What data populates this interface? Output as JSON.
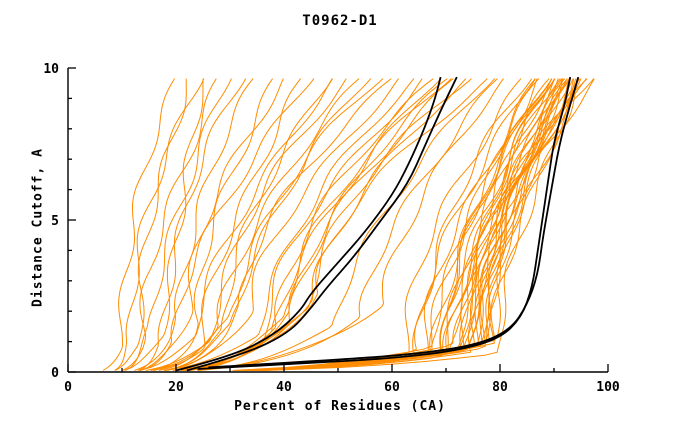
{
  "title": "T0962-D1",
  "chart_data": {
    "type": "line",
    "title": "T0962-D1",
    "xlabel": "Percent of Residues (CA)",
    "ylabel": "Distance Cutoff, A",
    "xlim": [
      0,
      100
    ],
    "ylim": [
      0,
      10
    ],
    "x_major_ticks": [
      0,
      20,
      40,
      60,
      80,
      100
    ],
    "x_minor_step": 10,
    "y_major_ticks": [
      0,
      5,
      10
    ],
    "y_minor_step": 1,
    "grid": false,
    "legend": "none",
    "colors": {
      "model_lines": "#ff8c00",
      "highlight_lines": "#000000",
      "background": "#ffffff"
    },
    "orange_curve_params": {
      "param_format": "[x_start, x_knee, knee_y, x_top]",
      "knee_exponent": 0.38,
      "tail_exponent": 1.6,
      "y_top": 9.7,
      "curves": [
        [
          5,
          9,
          0.8,
          20
        ],
        [
          6,
          11,
          1.0,
          24
        ],
        [
          7,
          13,
          0.9,
          22
        ],
        [
          8,
          14,
          1.2,
          28
        ],
        [
          8,
          16,
          1.5,
          30
        ],
        [
          9,
          18,
          1.2,
          26
        ],
        [
          10,
          20,
          1.8,
          35
        ],
        [
          10,
          17,
          0.9,
          32
        ],
        [
          11,
          22,
          2.0,
          40
        ],
        [
          12,
          24,
          1.6,
          38
        ],
        [
          9,
          20,
          1.0,
          45
        ],
        [
          10,
          24,
          1.2,
          50
        ],
        [
          11,
          28,
          1.5,
          55
        ],
        [
          12,
          30,
          1.8,
          58
        ],
        [
          10,
          26,
          1.0,
          52
        ],
        [
          13,
          32,
          2.2,
          60
        ],
        [
          12,
          29,
          1.4,
          48
        ],
        [
          14,
          34,
          2.0,
          62
        ],
        [
          11,
          25,
          0.8,
          44
        ],
        [
          13,
          31,
          1.6,
          56
        ],
        [
          12,
          35,
          1.2,
          65
        ],
        [
          13,
          38,
          1.5,
          68
        ],
        [
          14,
          40,
          1.8,
          70
        ],
        [
          12,
          36,
          1.0,
          66
        ],
        [
          15,
          42,
          2.0,
          72
        ],
        [
          13,
          39,
          1.3,
          69
        ],
        [
          16,
          45,
          2.4,
          75
        ],
        [
          14,
          41,
          1.6,
          71
        ],
        [
          15,
          44,
          2.1,
          74
        ],
        [
          16,
          46,
          2.6,
          78
        ],
        [
          10,
          62,
          0.6,
          84
        ],
        [
          11,
          65,
          0.7,
          86
        ],
        [
          12,
          68,
          0.8,
          88
        ],
        [
          10,
          70,
          0.6,
          90
        ],
        [
          13,
          72,
          0.9,
          91
        ],
        [
          11,
          74,
          0.7,
          92
        ],
        [
          12,
          76,
          0.8,
          93
        ],
        [
          14,
          78,
          1.0,
          94
        ],
        [
          10,
          80,
          0.6,
          95
        ],
        [
          13,
          75,
          0.9,
          92
        ],
        [
          11,
          71,
          0.7,
          90
        ],
        [
          12,
          73,
          0.8,
          91
        ],
        [
          14,
          77,
          1.0,
          93
        ],
        [
          10,
          69,
          0.5,
          89
        ],
        [
          15,
          79,
          1.1,
          94
        ],
        [
          11,
          66,
          0.6,
          87
        ],
        [
          12,
          70,
          0.7,
          90
        ],
        [
          13,
          74,
          0.8,
          92
        ],
        [
          14,
          76,
          0.9,
          93
        ],
        [
          10,
          64,
          0.5,
          85
        ],
        [
          12,
          72,
          0.75,
          95
        ],
        [
          13,
          78,
          0.95,
          96
        ],
        [
          11,
          75,
          0.65,
          93
        ],
        [
          12,
          77,
          0.85,
          94
        ],
        [
          10,
          67,
          0.55,
          88
        ],
        [
          11,
          70,
          0.6,
          97
        ],
        [
          12,
          74,
          0.8,
          98
        ],
        [
          13,
          72,
          0.7,
          96
        ],
        [
          11,
          73,
          0.7,
          91.5
        ],
        [
          12,
          76,
          0.85,
          92.5
        ],
        [
          13,
          79,
          1.05,
          95.5
        ],
        [
          10,
          68,
          0.6,
          89.5
        ],
        [
          12,
          71,
          0.75,
          90.5
        ],
        [
          14,
          75,
          0.95,
          92
        ],
        [
          11,
          69,
          0.65,
          88.5
        ],
        [
          13,
          77,
          0.9,
          94.5
        ],
        [
          13,
          55,
          1.8,
          80
        ],
        [
          14,
          50,
          1.5,
          79
        ],
        [
          15,
          58,
          2.2,
          82
        ]
      ]
    },
    "black_curves": [
      [
        [
          20,
          0.05
        ],
        [
          30,
          0.5
        ],
        [
          38,
          1.2
        ],
        [
          43,
          2.0
        ],
        [
          45,
          2.6
        ],
        [
          50,
          3.6
        ],
        [
          55,
          4.6
        ],
        [
          60,
          5.8
        ],
        [
          63,
          6.8
        ],
        [
          66,
          8.0
        ],
        [
          68,
          9.0
        ],
        [
          69,
          9.7
        ]
      ],
      [
        [
          22,
          0.05
        ],
        [
          33,
          0.6
        ],
        [
          41,
          1.3
        ],
        [
          45,
          2.1
        ],
        [
          48,
          2.8
        ],
        [
          53,
          3.8
        ],
        [
          58,
          5.0
        ],
        [
          63,
          6.2
        ],
        [
          66,
          7.4
        ],
        [
          69,
          8.6
        ],
        [
          72,
          9.7
        ]
      ],
      [
        [
          24,
          0.1
        ],
        [
          45,
          0.3
        ],
        [
          60,
          0.45
        ],
        [
          72,
          0.7
        ],
        [
          80,
          1.1
        ],
        [
          84,
          1.8
        ],
        [
          86,
          2.8
        ],
        [
          87,
          4.0
        ],
        [
          88,
          5.2
        ],
        [
          89,
          6.4
        ],
        [
          90,
          7.6
        ],
        [
          92,
          8.8
        ],
        [
          93,
          9.7
        ]
      ],
      [
        [
          26,
          0.15
        ],
        [
          50,
          0.4
        ],
        [
          65,
          0.6
        ],
        [
          76,
          0.9
        ],
        [
          82,
          1.4
        ],
        [
          85,
          2.2
        ],
        [
          87,
          3.2
        ],
        [
          88,
          4.5
        ],
        [
          89.5,
          6.0
        ],
        [
          91,
          7.5
        ],
        [
          93,
          8.8
        ],
        [
          94.5,
          9.7
        ]
      ]
    ]
  }
}
